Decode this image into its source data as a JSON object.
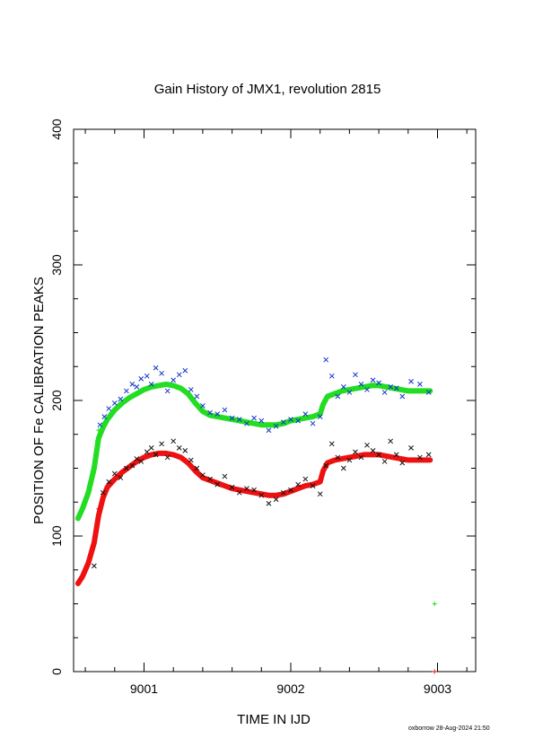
{
  "chart_data": {
    "type": "scatter",
    "title": "Gain History of JMX1, revolution 2815",
    "xlabel": "TIME IN IJD",
    "ylabel": "POSITION OF Fe CALIBRATION PEAKS",
    "xlim": [
      9000.52,
      9003.26
    ],
    "ylim": [
      0,
      400
    ],
    "x_ticks": [
      9001,
      9002,
      9003
    ],
    "x_tick_labels": [
      "9001",
      "9002",
      "9003"
    ],
    "y_ticks": [
      0,
      100,
      200,
      300,
      400
    ],
    "y_tick_labels": [
      "0",
      "100",
      "200",
      "300",
      "400"
    ],
    "grid": false,
    "legend": "none",
    "series": [
      {
        "color": "#22dd22",
        "marker": "line",
        "x": [
          9000.55,
          9000.58,
          9000.62,
          9000.66,
          9000.69,
          9000.72,
          9000.75,
          9000.8,
          9000.85,
          9000.9,
          9000.95,
          9001.0,
          9001.05,
          9001.1,
          9001.15,
          9001.2,
          9001.25,
          9001.3,
          9001.35,
          9001.4,
          9001.45,
          9001.5,
          9001.55,
          9001.6,
          9001.65,
          9001.7,
          9001.75,
          9001.8,
          9001.85,
          9001.9,
          9001.95,
          9002.0,
          9002.05,
          9002.1,
          9002.15,
          9002.2,
          9002.22,
          9002.25,
          9002.3,
          9002.35,
          9002.4,
          9002.45,
          9002.5,
          9002.55,
          9002.6,
          9002.65,
          9002.7,
          9002.75,
          9002.8,
          9002.85,
          9002.9,
          9002.95
        ],
        "y": [
          113,
          120,
          132,
          150,
          172,
          180,
          186,
          193,
          198,
          202,
          205,
          208,
          210,
          211,
          212,
          211,
          209,
          205,
          198,
          192,
          189,
          188,
          187,
          186,
          185,
          184,
          183,
          182,
          182,
          182,
          183,
          185,
          186,
          187,
          188,
          190,
          197,
          203,
          205,
          207,
          208,
          209,
          210,
          211,
          211,
          210,
          209,
          208,
          207,
          207,
          207,
          207
        ]
      },
      {
        "color": "#ee1111",
        "marker": "line",
        "x": [
          9000.55,
          9000.58,
          9000.62,
          9000.66,
          9000.69,
          9000.72,
          9000.75,
          9000.8,
          9000.85,
          9000.9,
          9000.95,
          9001.0,
          9001.05,
          9001.1,
          9001.15,
          9001.2,
          9001.25,
          9001.3,
          9001.35,
          9001.4,
          9001.45,
          9001.5,
          9001.55,
          9001.6,
          9001.65,
          9001.7,
          9001.75,
          9001.8,
          9001.85,
          9001.9,
          9001.95,
          9002.0,
          9002.05,
          9002.1,
          9002.15,
          9002.2,
          9002.22,
          9002.25,
          9002.3,
          9002.35,
          9002.4,
          9002.45,
          9002.5,
          9002.55,
          9002.6,
          9002.65,
          9002.7,
          9002.75,
          9002.8,
          9002.85,
          9002.9,
          9002.95
        ],
        "y": [
          65,
          70,
          80,
          95,
          115,
          128,
          136,
          142,
          147,
          151,
          155,
          158,
          160,
          161,
          161,
          160,
          158,
          154,
          148,
          143,
          141,
          139,
          137,
          135,
          134,
          133,
          132,
          131,
          130,
          130,
          131,
          133,
          135,
          137,
          138,
          140,
          148,
          154,
          156,
          157,
          158,
          159,
          160,
          160,
          160,
          159,
          158,
          157,
          156,
          156,
          156,
          156
        ]
      },
      {
        "color": "#1133cc",
        "marker": "x",
        "x": [
          9000.7,
          9000.73,
          9000.76,
          9000.8,
          9000.84,
          9000.88,
          9000.92,
          9000.95,
          9000.98,
          9001.02,
          9001.05,
          9001.08,
          9001.12,
          9001.16,
          9001.2,
          9001.24,
          9001.28,
          9001.32,
          9001.36,
          9001.4,
          9001.45,
          9001.5,
          9001.55,
          9001.6,
          9001.65,
          9001.7,
          9001.75,
          9001.8,
          9001.85,
          9001.9,
          9001.95,
          9002.0,
          9002.05,
          9002.1,
          9002.15,
          9002.2,
          9002.24,
          9002.28,
          9002.32,
          9002.36,
          9002.4,
          9002.44,
          9002.48,
          9002.52,
          9002.56,
          9002.6,
          9002.64,
          9002.68,
          9002.72,
          9002.76,
          9002.82,
          9002.88,
          9002.94
        ],
        "y": [
          182,
          188,
          194,
          198,
          201,
          207,
          212,
          210,
          216,
          218,
          212,
          224,
          220,
          207,
          215,
          219,
          222,
          208,
          203,
          196,
          191,
          190,
          193,
          187,
          186,
          183,
          187,
          185,
          178,
          181,
          184,
          186,
          185,
          190,
          183,
          188,
          230,
          218,
          203,
          210,
          206,
          219,
          212,
          208,
          215,
          213,
          206,
          210,
          209,
          203,
          214,
          212,
          206
        ]
      },
      {
        "color": "#111111",
        "marker": "x",
        "x": [
          9000.66,
          9000.72,
          9000.76,
          9000.8,
          9000.84,
          9000.88,
          9000.92,
          9000.95,
          9000.98,
          9001.02,
          9001.05,
          9001.08,
          9001.12,
          9001.16,
          9001.2,
          9001.24,
          9001.28,
          9001.32,
          9001.36,
          9001.4,
          9001.45,
          9001.5,
          9001.55,
          9001.6,
          9001.65,
          9001.7,
          9001.75,
          9001.8,
          9001.85,
          9001.9,
          9001.95,
          9002.0,
          9002.05,
          9002.1,
          9002.15,
          9002.2,
          9002.24,
          9002.28,
          9002.32,
          9002.36,
          9002.4,
          9002.44,
          9002.48,
          9002.52,
          9002.56,
          9002.6,
          9002.64,
          9002.68,
          9002.72,
          9002.76,
          9002.82,
          9002.88,
          9002.94
        ],
        "y": [
          78,
          132,
          140,
          146,
          143,
          150,
          152,
          157,
          155,
          162,
          165,
          160,
          168,
          158,
          170,
          165,
          163,
          156,
          150,
          145,
          142,
          138,
          144,
          136,
          132,
          135,
          134,
          130,
          124,
          127,
          132,
          134,
          138,
          142,
          137,
          131,
          152,
          168,
          158,
          150,
          156,
          162,
          158,
          167,
          163,
          160,
          155,
          170,
          160,
          154,
          165,
          158,
          160
        ]
      },
      {
        "color": "#22dd22",
        "marker": "+",
        "x": [
          9000.55,
          9000.57,
          9000.59,
          9000.61,
          9000.63,
          9000.65,
          9000.67,
          9000.68,
          9000.69,
          9002.98
        ],
        "y": [
          113,
          118,
          124,
          128,
          134,
          148,
          160,
          170,
          178,
          50
        ]
      },
      {
        "color": "#ee1111",
        "marker": "+",
        "x": [
          9000.55,
          9000.57,
          9000.59,
          9000.61,
          9000.63,
          9000.65,
          9000.67,
          9000.68,
          9000.69,
          9002.98
        ],
        "y": [
          65,
          68,
          72,
          78,
          84,
          92,
          100,
          110,
          120,
          0
        ]
      }
    ],
    "footer_text": "oxborrow 28-Aug-2024 21:50"
  }
}
